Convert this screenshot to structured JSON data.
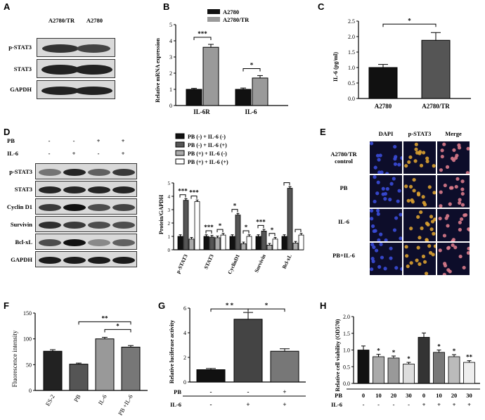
{
  "panels": {
    "A": {
      "label": "A",
      "columns": [
        "A2780/TR",
        "A2780"
      ],
      "rows": [
        "p-STAT3",
        "STAT3",
        "GAPDH"
      ]
    },
    "B": {
      "label": "B",
      "chart_data": {
        "type": "bar",
        "categories": [
          "IL-6R",
          "IL-6"
        ],
        "series": [
          {
            "name": "A2780",
            "values": [
              1.0,
              1.0
            ],
            "errors": [
              0.06,
              0.08
            ],
            "color": "#111111"
          },
          {
            "name": "A2780/TR",
            "values": [
              3.6,
              1.7
            ],
            "errors": [
              0.18,
              0.15
            ],
            "color": "#9a9a9a"
          }
        ],
        "ylabel": "Relative  mRNA expression",
        "ylim": [
          0,
          5
        ],
        "yticks": [
          "0",
          "1",
          "2",
          "3",
          "4",
          "5"
        ],
        "significance": [
          "***",
          "*"
        ]
      }
    },
    "C": {
      "label": "C",
      "chart_data": {
        "type": "bar",
        "categories": [
          "A2780",
          "A2780/TR"
        ],
        "values": [
          1.0,
          1.88
        ],
        "errors": [
          0.1,
          0.25
        ],
        "colors": [
          "#111111",
          "#555555"
        ],
        "ylabel": "IL-6 (pg/ml)",
        "ylim": [
          0,
          2.5
        ],
        "yticks": [
          "0.0",
          "0.5",
          "1.0",
          "1.5",
          "2.0",
          "2.5"
        ],
        "significance": "*"
      }
    },
    "D": {
      "label": "D",
      "conditions": [
        {
          "name": "PB",
          "values": [
            "-",
            "-",
            "+",
            "+"
          ]
        },
        {
          "name": "IL-6",
          "values": [
            "-",
            "+",
            "-",
            "+"
          ]
        }
      ],
      "rows": [
        "p-STAT3",
        "STAT3",
        "Cyclin D1",
        "Survivin",
        "Bcl-xL",
        "GAPDH"
      ],
      "chart_data": {
        "type": "bar",
        "categories": [
          "p-STAT3",
          "STAT3",
          "CyclinD1",
          "Survivin",
          "Bcl-xL"
        ],
        "series": [
          {
            "name": "PB (-) + IL-6 (-)",
            "values": [
              1.0,
              1.0,
              1.0,
              1.0,
              1.0
            ],
            "color": "#111111"
          },
          {
            "name": "PB (-) + IL-6 (+)",
            "values": [
              3.7,
              0.95,
              2.6,
              1.4,
              4.6
            ],
            "color": "#555555"
          },
          {
            "name": "PB (+) + IL-6 (-)",
            "values": [
              0.8,
              0.9,
              0.45,
              0.35,
              0.5
            ],
            "color": "#aaaaaa"
          },
          {
            "name": "PB (+) + IL-6 (+)",
            "values": [
              3.6,
              1.1,
              1.0,
              0.8,
              1.1
            ],
            "color": "#ffffff"
          }
        ],
        "ylabel": "Protein/GAPDH",
        "ylim": [
          0,
          5
        ],
        "yticks": [
          "0",
          "1",
          "2",
          "3",
          "4",
          "5"
        ],
        "significance": [
          "***",
          "***",
          "***",
          "*",
          "*",
          "*",
          "***",
          "*"
        ]
      }
    },
    "E": {
      "label": "E",
      "columns": [
        "DAPI",
        "p-STAT3",
        "Merge"
      ],
      "rows": [
        "A2780/TR\ncontrol",
        "PB",
        "IL-6",
        "PB+IL-6"
      ]
    },
    "F": {
      "label": "F",
      "chart_data": {
        "type": "bar",
        "categories": [
          "ES-2",
          "PB",
          "IL-6",
          "PB +IL-6"
        ],
        "values": [
          76,
          51,
          100,
          84
        ],
        "errors": [
          3,
          2,
          3,
          3
        ],
        "colors": [
          "#222222",
          "#555555",
          "#999999",
          "#777777"
        ],
        "ylabel": "Fluorescence intensity",
        "ylim": [
          0,
          150
        ],
        "yticks": [
          "0",
          "50",
          "100",
          "150"
        ],
        "significance": [
          "**",
          "*"
        ]
      }
    },
    "G": {
      "label": "G",
      "chart_data": {
        "type": "bar",
        "categories": [
          "1",
          "2",
          "3"
        ],
        "values": [
          1.0,
          5.1,
          2.5
        ],
        "errors": [
          0.1,
          0.55,
          0.2
        ],
        "colors": [
          "#111111",
          "#444444",
          "#777777"
        ],
        "ylabel": "Relative luciferase activity",
        "ylim": [
          0,
          6
        ],
        "yticks": [
          "0",
          "2",
          "4",
          "6"
        ],
        "significance": [
          "* *",
          "*"
        ]
      },
      "conditions": [
        {
          "name": "PB",
          "values": [
            "-",
            "-",
            "+"
          ]
        },
        {
          "name": "IL-6",
          "values": [
            "-",
            "+",
            "+"
          ]
        }
      ]
    },
    "H": {
      "label": "H",
      "chart_data": {
        "type": "bar",
        "categories": [
          "1",
          "2",
          "3",
          "4",
          "5",
          "6",
          "7",
          "8"
        ],
        "values": [
          1.0,
          0.8,
          0.76,
          0.58,
          1.38,
          0.93,
          0.8,
          0.63
        ],
        "errors": [
          0.12,
          0.07,
          0.06,
          0.05,
          0.13,
          0.07,
          0.06,
          0.05
        ],
        "significance": [
          "",
          "*",
          "*",
          "*",
          "",
          "*",
          "*",
          "**"
        ],
        "ylabel": "Relative cell viability (OD570)",
        "ylim": [
          0,
          2.0
        ],
        "yticks": [
          "0.0",
          "0.5",
          "1.0",
          "1.5",
          "2.0"
        ]
      },
      "conditions": [
        {
          "name": "PB",
          "values": [
            "0",
            "10",
            "20",
            "30",
            "0",
            "10",
            "20",
            "30"
          ]
        },
        {
          "name": "IL-6",
          "values": [
            "-",
            "-",
            "-",
            "-",
            "+",
            "+",
            "+",
            "+"
          ]
        }
      ]
    }
  }
}
